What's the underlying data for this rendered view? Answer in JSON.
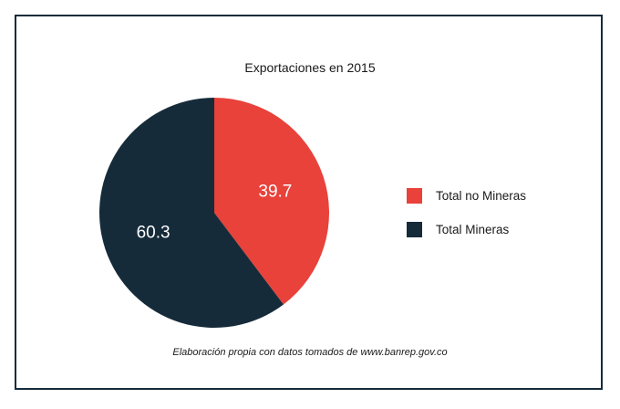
{
  "chart_data": {
    "type": "pie",
    "title": "Exportaciones en 2015",
    "categories": [
      "Total no Mineras",
      "Total Mineras"
    ],
    "values": [
      39.7,
      60.3
    ],
    "value_labels": [
      "39.7",
      "60.3"
    ],
    "colors": [
      "#e8423b",
      "#162b3a"
    ],
    "start_angle_deg": 0,
    "direction": "clockwise",
    "legend_position": "right",
    "source_note": "Elaboración propia con datos tomados de www.banrep.gov.co"
  }
}
